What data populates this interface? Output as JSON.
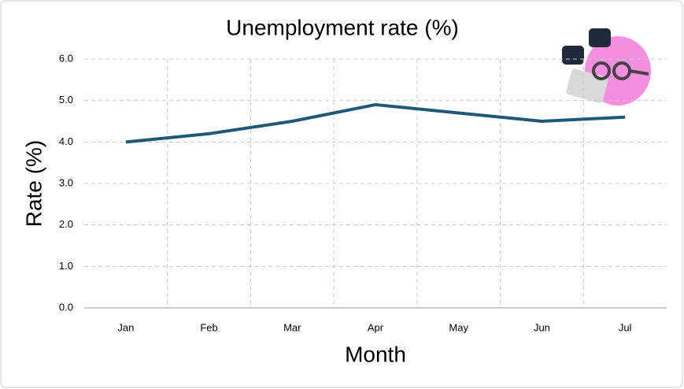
{
  "chart_data": {
    "type": "line",
    "title": "Unemployment rate (%)",
    "x_label": "Month",
    "y_label": "Rate (%)",
    "categories": [
      "Jan",
      "Feb",
      "Mar",
      "Apr",
      "May",
      "Jun",
      "Jul"
    ],
    "values": [
      4.0,
      4.2,
      4.5,
      4.9,
      4.7,
      4.5,
      4.6
    ],
    "color": "#1d5a7a",
    "ylim": [
      0,
      6
    ],
    "yticks": [
      {
        "value": 0,
        "label": "0.0"
      },
      {
        "value": 1,
        "label": "1.0"
      },
      {
        "value": 2,
        "label": "2.0"
      },
      {
        "value": 3,
        "label": "3.0"
      },
      {
        "value": 4,
        "label": "4.0"
      },
      {
        "value": 5,
        "label": "5.0"
      },
      {
        "value": 6,
        "label": "6.0"
      }
    ],
    "grid": true
  }
}
